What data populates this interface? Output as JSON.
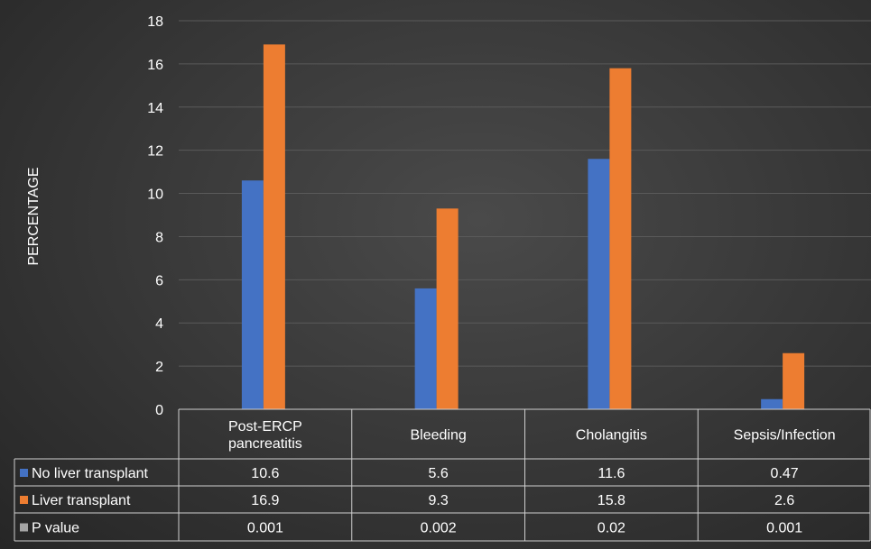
{
  "chart_data": {
    "type": "bar",
    "ylabel": "PERCENTAGE",
    "xlabel": "",
    "ylim": [
      0,
      18
    ],
    "yticks": [
      0,
      2,
      4,
      6,
      8,
      10,
      12,
      14,
      16,
      18
    ],
    "grid": true,
    "legend": "data-table",
    "categories": [
      [
        "Post-ERCP",
        "pancreatitis"
      ],
      [
        "Bleeding"
      ],
      [
        "Cholangitis"
      ],
      [
        "Sepsis/Infection"
      ]
    ],
    "series": [
      {
        "name": "No liver transplant",
        "color": "#4472c4",
        "values": [
          10.6,
          5.6,
          11.6,
          0.47
        ],
        "labels": [
          "10.6",
          "5.6",
          "11.6",
          "0.47"
        ],
        "plotted": true
      },
      {
        "name": "Liver transplant",
        "color": "#ed7d31",
        "values": [
          16.9,
          9.3,
          15.8,
          2.6
        ],
        "labels": [
          "16.9",
          "9.3",
          "15.8",
          "2.6"
        ],
        "plotted": true
      },
      {
        "name": "P value",
        "color": "#a5a5a5",
        "values": [
          0.001,
          0.002,
          0.02,
          0.001
        ],
        "labels": [
          "0.001",
          "0.002",
          "0.02",
          "0.001"
        ],
        "plotted": false
      }
    ]
  },
  "colors": {
    "background": "#333333",
    "gridline": "#5a5a5a",
    "text": "#ffffff",
    "table_border": "#cfcfcf"
  }
}
